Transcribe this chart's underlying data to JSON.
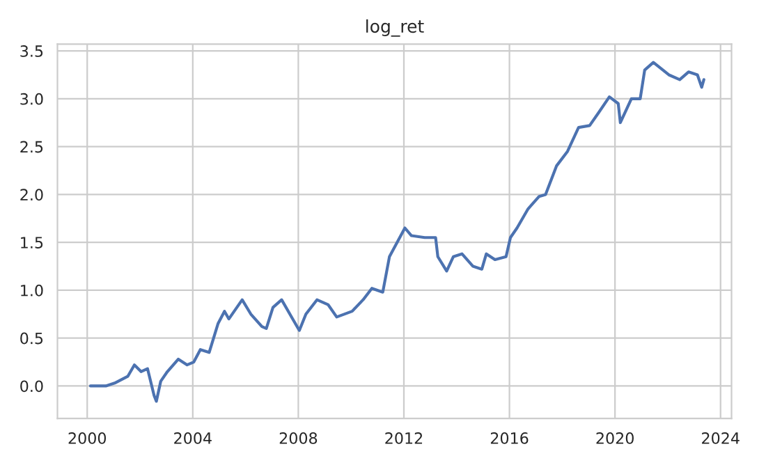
{
  "chart_data": {
    "type": "line",
    "title": "log_ret",
    "x": [
      "2000-02",
      "2000-09",
      "2001-01",
      "2001-07",
      "2001-10",
      "2002-01",
      "2002-04",
      "2002-07",
      "2002-08",
      "2002-10",
      "2003-01",
      "2003-06",
      "2003-10",
      "2004-01",
      "2004-04",
      "2004-08",
      "2004-12",
      "2005-03",
      "2005-05",
      "2005-11",
      "2006-03",
      "2006-08",
      "2006-10",
      "2007-01",
      "2007-05",
      "2007-10",
      "2008-01",
      "2008-04",
      "2008-09",
      "2009-02",
      "2009-06",
      "2010-01",
      "2010-06",
      "2010-10",
      "2011-03",
      "2011-06",
      "2012-01",
      "2012-04",
      "2012-10",
      "2013-03",
      "2013-04",
      "2013-08",
      "2013-11",
      "2014-03",
      "2014-08",
      "2014-12",
      "2015-02",
      "2015-06",
      "2015-11",
      "2016-01",
      "2016-04",
      "2016-09",
      "2017-02",
      "2017-05",
      "2017-10",
      "2018-03",
      "2018-08",
      "2019-01",
      "2019-05",
      "2019-10",
      "2020-02",
      "2020-03",
      "2020-08",
      "2020-12",
      "2021-02",
      "2021-06",
      "2022-01",
      "2022-06",
      "2022-10",
      "2023-02",
      "2023-04",
      "2023-05"
    ],
    "series": [
      {
        "color": "#4c72b0",
        "values": [
          0.0,
          0.0,
          0.03,
          0.1,
          0.22,
          0.15,
          0.18,
          -0.1,
          -0.16,
          0.05,
          0.15,
          0.28,
          0.22,
          0.25,
          0.38,
          0.35,
          0.65,
          0.78,
          0.7,
          0.9,
          0.75,
          0.62,
          0.6,
          0.82,
          0.9,
          0.7,
          0.58,
          0.75,
          0.9,
          0.85,
          0.72,
          0.78,
          0.9,
          1.02,
          0.98,
          1.35,
          1.65,
          1.57,
          1.55,
          1.55,
          1.35,
          1.2,
          1.35,
          1.38,
          1.25,
          1.22,
          1.38,
          1.32,
          1.35,
          1.55,
          1.65,
          1.85,
          1.98,
          2.0,
          2.3,
          2.45,
          2.7,
          2.72,
          2.85,
          3.02,
          2.95,
          2.75,
          3.0,
          3.0,
          3.3,
          3.38,
          3.25,
          3.2,
          3.28,
          3.25,
          3.12,
          3.2
        ]
      }
    ],
    "xlim": [
      "1998-11-15",
      "2024-06-01"
    ],
    "xticks": [
      {
        "value": "2000-01-01",
        "label": "2000"
      },
      {
        "value": "2004-01-01",
        "label": "2004"
      },
      {
        "value": "2008-01-01",
        "label": "2008"
      },
      {
        "value": "2012-01-01",
        "label": "2012"
      },
      {
        "value": "2016-01-01",
        "label": "2016"
      },
      {
        "value": "2020-01-01",
        "label": "2020"
      },
      {
        "value": "2024-01-01",
        "label": "2024"
      }
    ],
    "ylim": [
      -0.34,
      3.57
    ],
    "yticks": [
      {
        "value": 0,
        "label": "0.0"
      },
      0.5,
      {
        "value": 1,
        "label": "1.0"
      },
      1.5,
      {
        "value": 2,
        "label": "2.0"
      },
      2.5,
      {
        "value": 3,
        "label": "3.0"
      },
      3.5
    ],
    "grid": true,
    "legend": false,
    "line_style": "solid"
  }
}
